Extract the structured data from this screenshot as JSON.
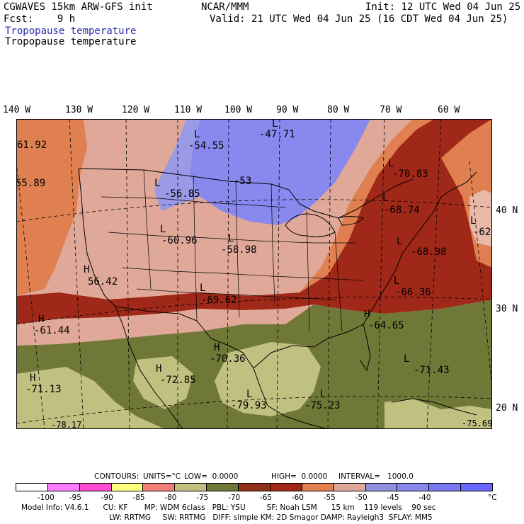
{
  "header": {
    "line1_left": "CGWAVES 15km ARW-GFS init",
    "line1_center": "NCAR/MMM",
    "line1_right": "Init: 12 UTC Wed 04 Jun 25",
    "line2_left": "Fcst:    9 h",
    "line2_right": "Valid: 21 UTC Wed 04 Jun 25 (16 CDT Wed 04 Jun 25)",
    "field_title_1": "Tropopause temperature",
    "field_title_2": "Tropopause temperature"
  },
  "longitudes": [
    "140 W",
    "130 W",
    "120 W",
    "110 W",
    "100 W",
    "90 W",
    "80 W",
    "70 W",
    "60 W"
  ],
  "latitudes": [
    "40 N",
    "30 N",
    "20 N"
  ],
  "map_labels": [
    {
      "letter": "L",
      "value": "-47.71"
    },
    {
      "letter": "L",
      "value": "-54.55"
    },
    {
      "letter": "",
      "value": "-53"
    },
    {
      "letter": "",
      "value": "61.92"
    },
    {
      "letter": "",
      "value": "55.89"
    },
    {
      "letter": "L",
      "value": "-56.85"
    },
    {
      "letter": "L",
      "value": "-70.83"
    },
    {
      "letter": "L",
      "value": "-68.74"
    },
    {
      "letter": "L",
      "value": "-62"
    },
    {
      "letter": "L",
      "value": "-60.96"
    },
    {
      "letter": "L",
      "value": "-58.98"
    },
    {
      "letter": "L",
      "value": "-68.98"
    },
    {
      "letter": "H",
      "value": "56.42"
    },
    {
      "letter": "L",
      "value": "-66.36"
    },
    {
      "letter": "L",
      "value": "-69.62"
    },
    {
      "letter": "H",
      "value": "-61.44"
    },
    {
      "letter": "H",
      "value": "-64.65"
    },
    {
      "letter": "H",
      "value": "-70.36"
    },
    {
      "letter": "L",
      "value": "-71.43"
    },
    {
      "letter": "H",
      "value": "-72.85"
    },
    {
      "letter": "H",
      "value": "-71.13"
    },
    {
      "letter": "L",
      "value": "-79.93"
    },
    {
      "letter": "L",
      "value": "-75.23"
    },
    {
      "letter": "",
      "value": "-78.17"
    },
    {
      "letter": "",
      "value": "-75.69"
    }
  ],
  "contours_info": {
    "contours": "CONTOURS:",
    "units": "UNITS=°C",
    "low": "LOW=  0.0000",
    "high": "HIGH=  0.0000",
    "interval": "INTERVAL=   1000.0"
  },
  "colorbar": {
    "colors": [
      "#ffffff",
      "#ff7cff",
      "#ff4cd0",
      "#ffff80",
      "#f08078",
      "#c0c080",
      "#707838",
      "#903018",
      "#a02818",
      "#e08050",
      "#e0a898",
      "#9090e0",
      "#8888ee",
      "#7878f0",
      "#6868ff"
    ],
    "labels": [
      "-100",
      "-95",
      "-90",
      "-85",
      "-80",
      "-75",
      "-70",
      "-65",
      "-60",
      "-55",
      "-50",
      "-45",
      "-40"
    ],
    "unit": "°C"
  },
  "footer": {
    "line1": "Model Info: V4.6.1      CU: KF       MP: WDM 6class   PBL: YSU         SF: Noah LSM      15 km    119 levels    90 sec",
    "line2": "LW: RRTMG     SW: RRTMG   DIFF: simple KM: 2D Smagor DAMP: Rayleigh3  SFLAY: MM5"
  }
}
